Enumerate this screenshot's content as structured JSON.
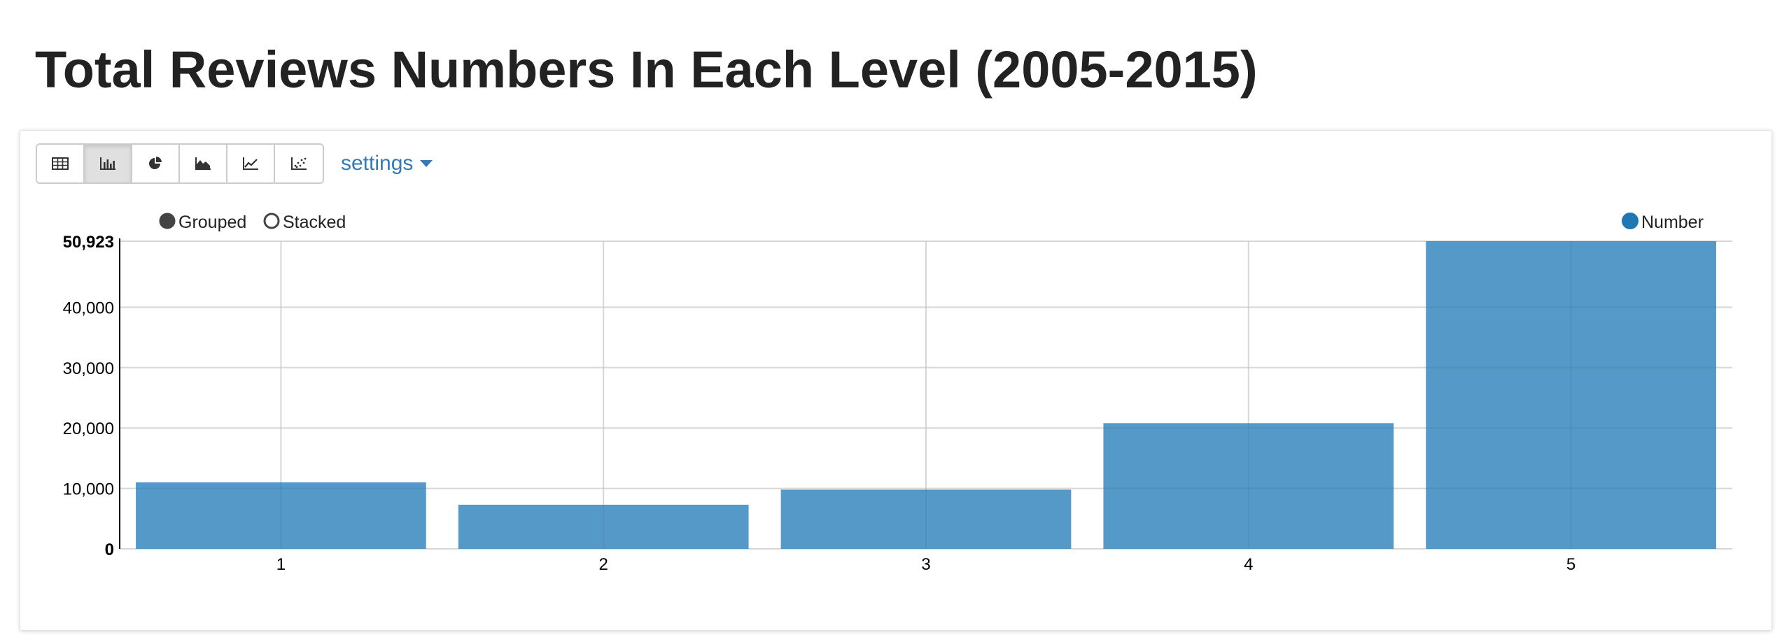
{
  "page": {
    "title": "Total Reviews Numbers In Each Level (2005-2015)"
  },
  "toolbar": {
    "buttons": [
      {
        "icon": "table-icon",
        "active": false
      },
      {
        "icon": "bar-chart-icon",
        "active": true
      },
      {
        "icon": "pie-chart-icon",
        "active": false
      },
      {
        "icon": "area-chart-icon",
        "active": false
      },
      {
        "icon": "line-chart-icon",
        "active": false
      },
      {
        "icon": "scatter-chart-icon",
        "active": false
      }
    ],
    "settings_label": "settings"
  },
  "controls": {
    "grouped_label": "Grouped",
    "stacked_label": "Stacked",
    "selected": "Grouped"
  },
  "colors": {
    "bar": "#5599c8",
    "legend_dot": "#1f77b4",
    "link": "#337ab7"
  },
  "chart_data": {
    "type": "bar",
    "categories": [
      "1",
      "2",
      "3",
      "4",
      "5"
    ],
    "series": [
      {
        "name": "Number",
        "values": [
          11000,
          7300,
          9800,
          20800,
          50923
        ]
      }
    ],
    "ylim": [
      0,
      50923
    ],
    "yticks": [
      0,
      10000,
      20000,
      30000,
      40000,
      50923
    ],
    "ytick_labels": [
      "0",
      "10,000",
      "20,000",
      "30,000",
      "40,000",
      "50,923"
    ],
    "grid": true,
    "legend_position": "top-right"
  }
}
